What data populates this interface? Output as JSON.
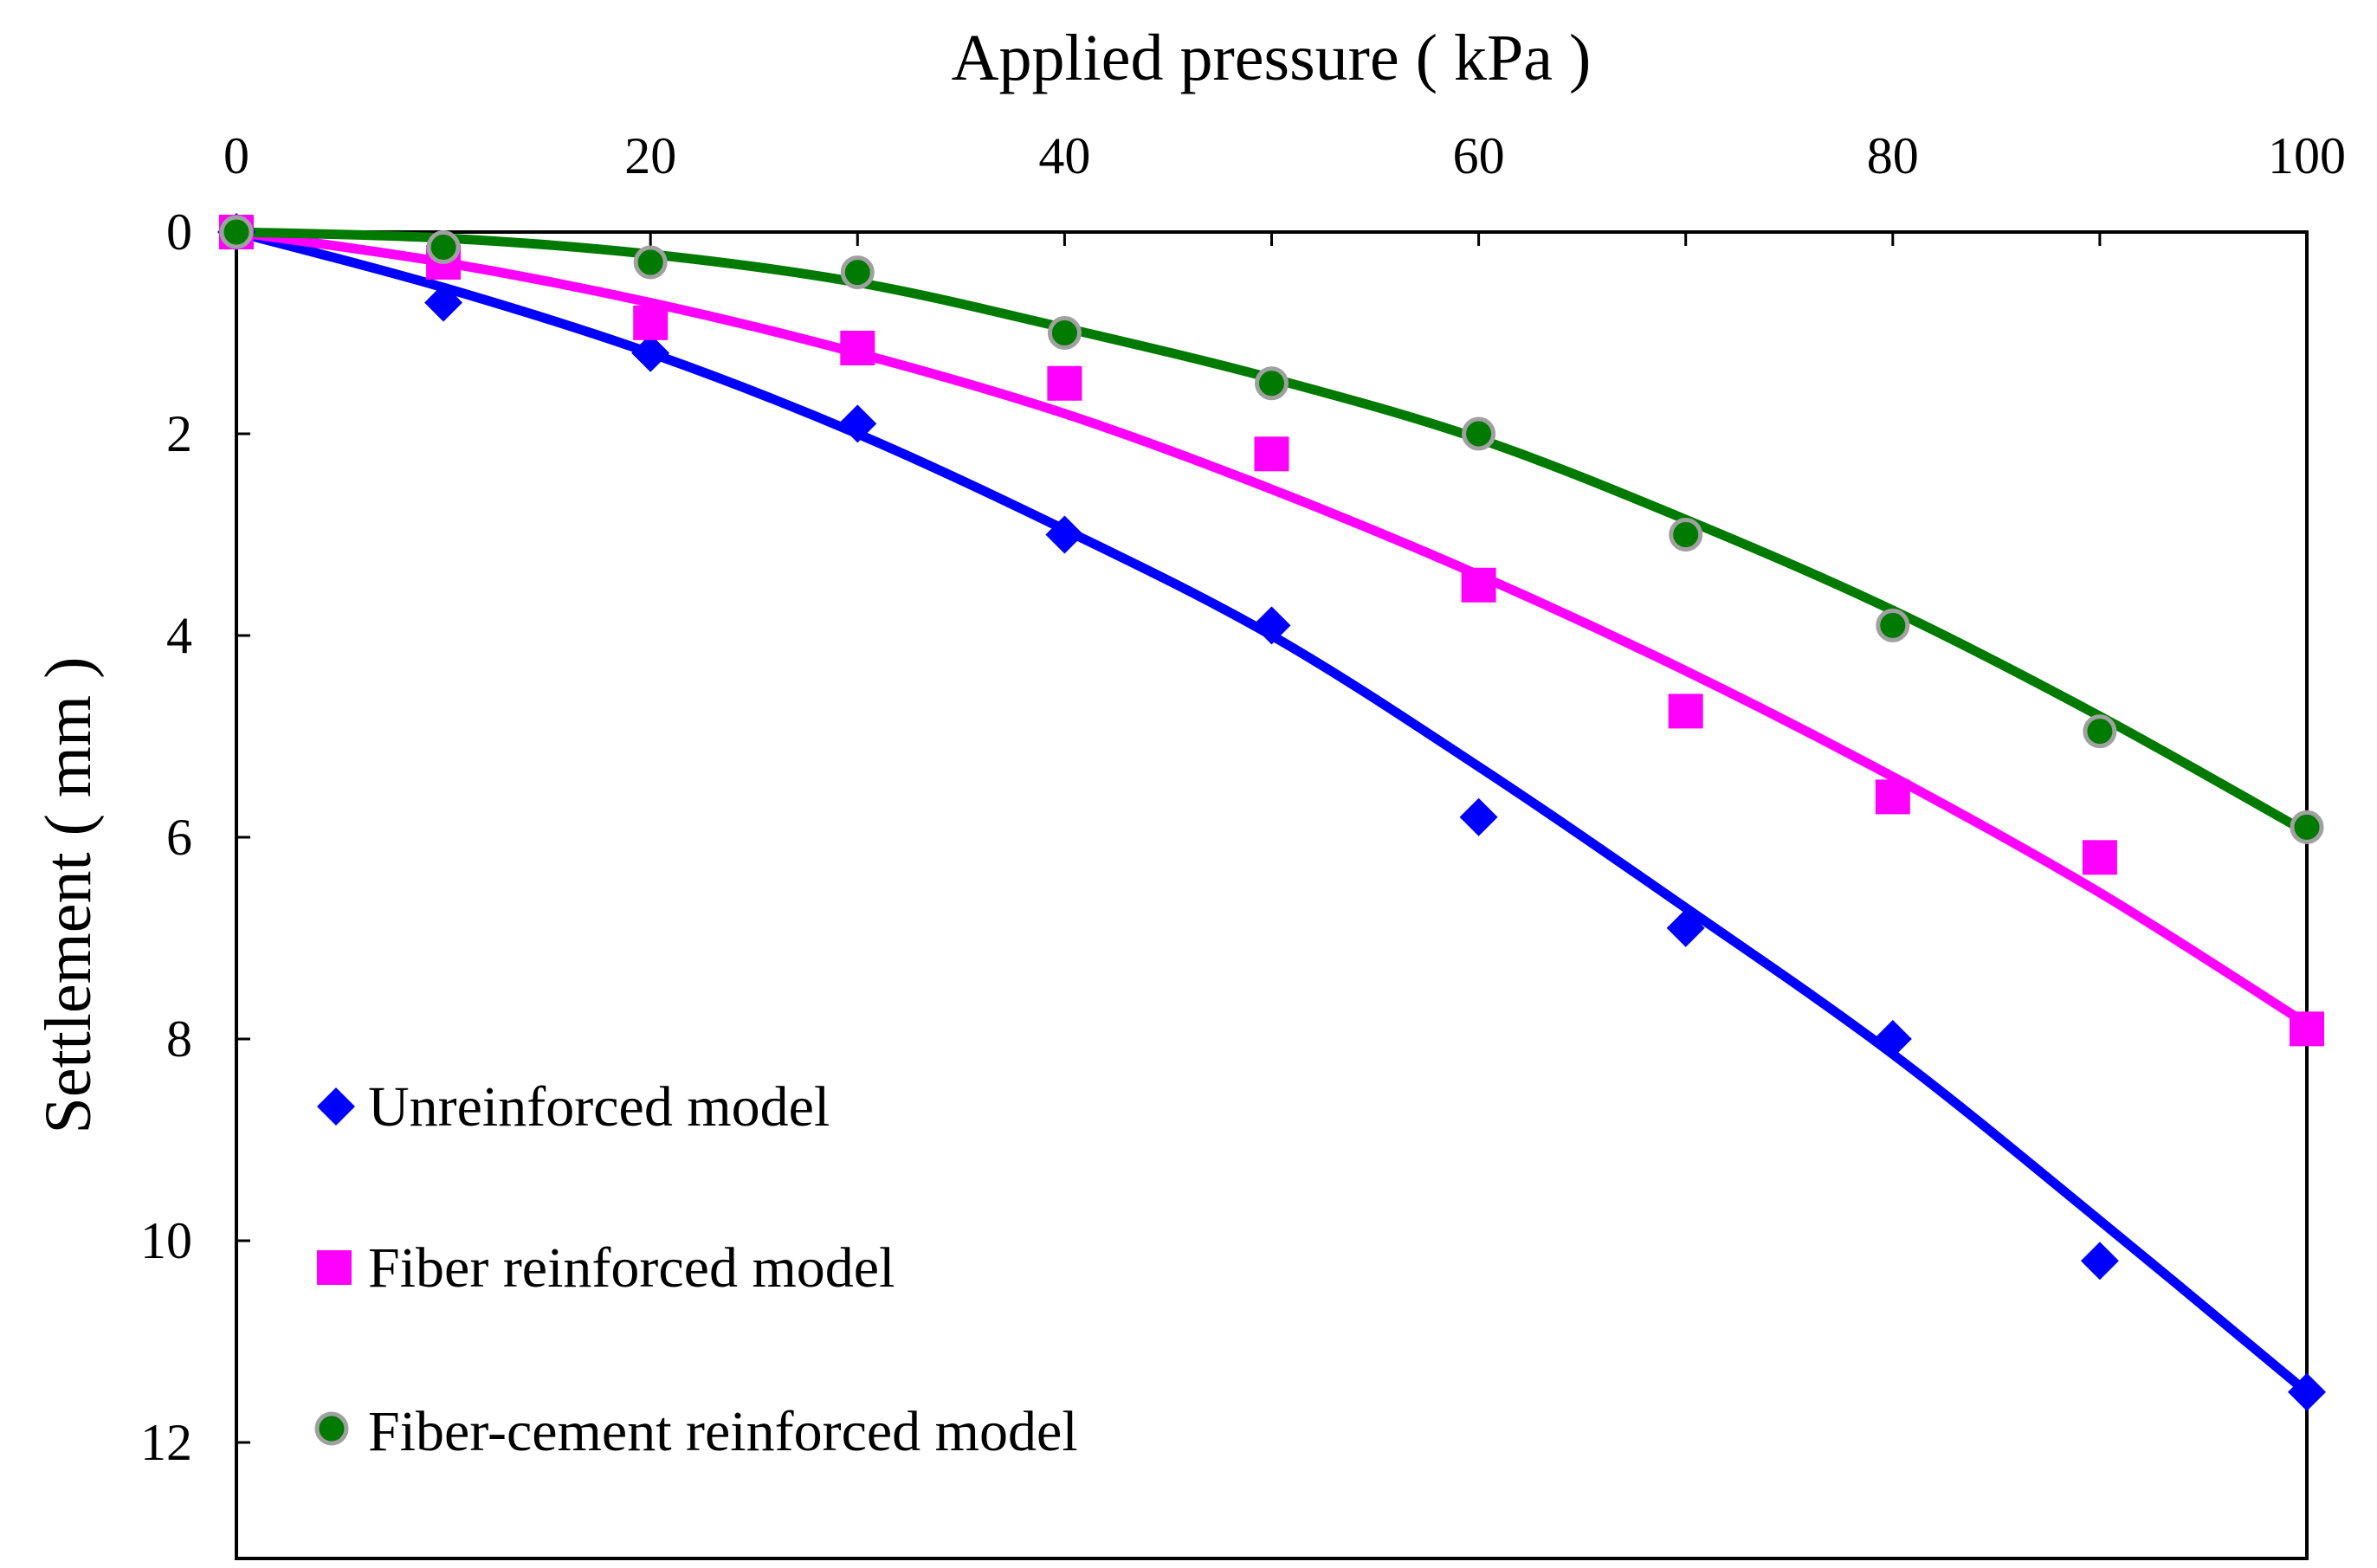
{
  "chart_data": {
    "type": "scatter",
    "title": "",
    "xlabel": "Applied pressure ( kPa )",
    "ylabel": "Settlement ( mm )",
    "x_axis_position": "top",
    "y_axis_inverted": true,
    "xlim": [
      0,
      100
    ],
    "ylim": [
      0,
      13
    ],
    "x_ticks": [
      "0",
      "20",
      "40",
      "60",
      "80",
      "100"
    ],
    "y_ticks": [
      "0",
      "2",
      "4",
      "6",
      "8",
      "10",
      "12"
    ],
    "grid": false,
    "legend_position": "bottom-left",
    "series": [
      {
        "name": "Unreinforced model",
        "marker": "diamond",
        "color": "#0000ff",
        "x": [
          0,
          10,
          20,
          30,
          40,
          50,
          60,
          70,
          80,
          90,
          100
        ],
        "y": [
          0,
          0.7,
          1.2,
          1.9,
          3.0,
          3.9,
          5.8,
          6.9,
          8.0,
          10.2,
          11.5
        ],
        "fit": [
          0,
          0.55,
          1.2,
          2.0,
          2.95,
          4.0,
          5.3,
          6.7,
          8.15,
          9.8,
          11.5
        ]
      },
      {
        "name": "Fiber reinforced model",
        "marker": "square",
        "color": "#ff00ff",
        "x": [
          0,
          10,
          20,
          30,
          40,
          50,
          60,
          70,
          80,
          90,
          100
        ],
        "y": [
          0,
          0.3,
          0.9,
          1.15,
          1.5,
          2.2,
          3.5,
          4.75,
          5.6,
          6.2,
          7.9
        ],
        "fit": [
          0,
          0.3,
          0.7,
          1.2,
          1.8,
          2.55,
          3.4,
          4.35,
          5.4,
          6.55,
          7.85
        ]
      },
      {
        "name": "Fiber-cement reinforced model",
        "marker": "circle",
        "color": "#007a00",
        "x": [
          0,
          10,
          20,
          30,
          40,
          50,
          60,
          70,
          80,
          90,
          100
        ],
        "y": [
          0,
          0.15,
          0.3,
          0.4,
          1.0,
          1.5,
          2.0,
          3.0,
          3.9,
          4.95,
          5.9
        ],
        "fit": [
          0,
          0.06,
          0.22,
          0.5,
          0.95,
          1.45,
          2.05,
          2.85,
          3.75,
          4.8,
          5.95
        ]
      }
    ]
  }
}
